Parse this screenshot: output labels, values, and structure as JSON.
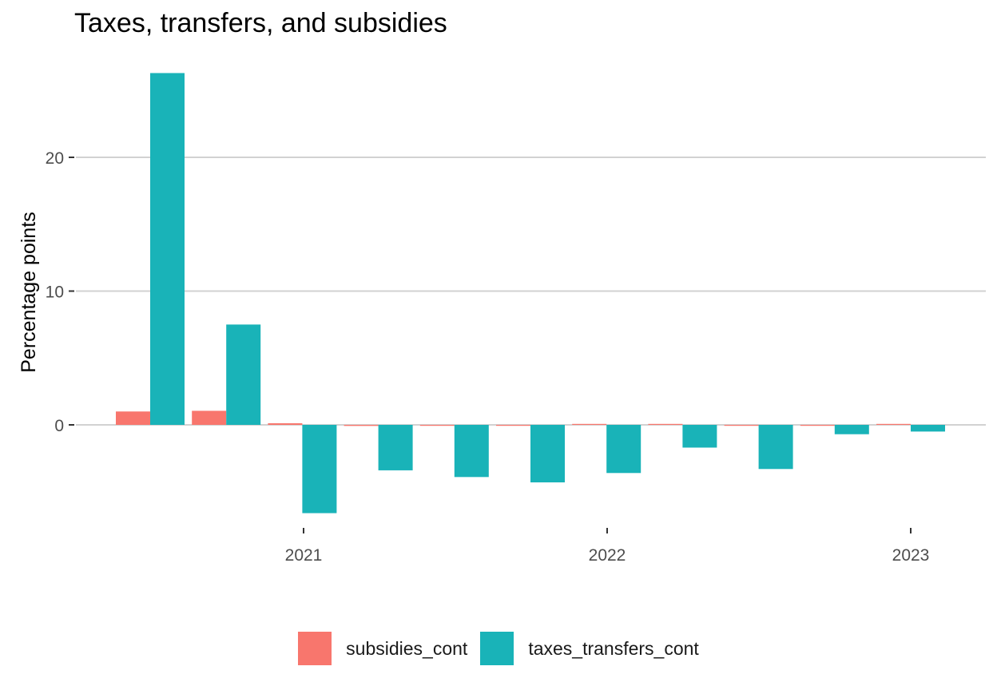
{
  "chart_data": {
    "type": "bar",
    "title": "Taxes, transfers, and subsidies",
    "xlabel": "",
    "ylabel": "Percentage points",
    "x_ticks": [
      "2021",
      "2022",
      "2023"
    ],
    "y_ticks": [
      0,
      10,
      20
    ],
    "ylim": [
      -7.0,
      27.5
    ],
    "grid": "horizontal major",
    "legend_position": "bottom",
    "colors": {
      "subsidies_cont": "#F8766D",
      "taxes_transfers_cont": "#19B3B8"
    },
    "categories": [
      "2020 Q3",
      "2020 Q4",
      "2021 Q1",
      "2021 Q2",
      "2021 Q3",
      "2021 Q4",
      "2022 Q1",
      "2022 Q2",
      "2022 Q3",
      "2022 Q4",
      "2023 Q1"
    ],
    "series": [
      {
        "name": "subsidies_cont",
        "values": [
          1.0,
          1.05,
          0.12,
          -0.08,
          -0.03,
          -0.03,
          0.0,
          0.0,
          -0.03,
          -0.03,
          0.03
        ]
      },
      {
        "name": "taxes_transfers_cont",
        "values": [
          26.3,
          7.5,
          -6.6,
          -3.4,
          -3.9,
          -4.3,
          -3.6,
          -1.7,
          -3.3,
          -0.7,
          -0.5
        ]
      }
    ]
  }
}
